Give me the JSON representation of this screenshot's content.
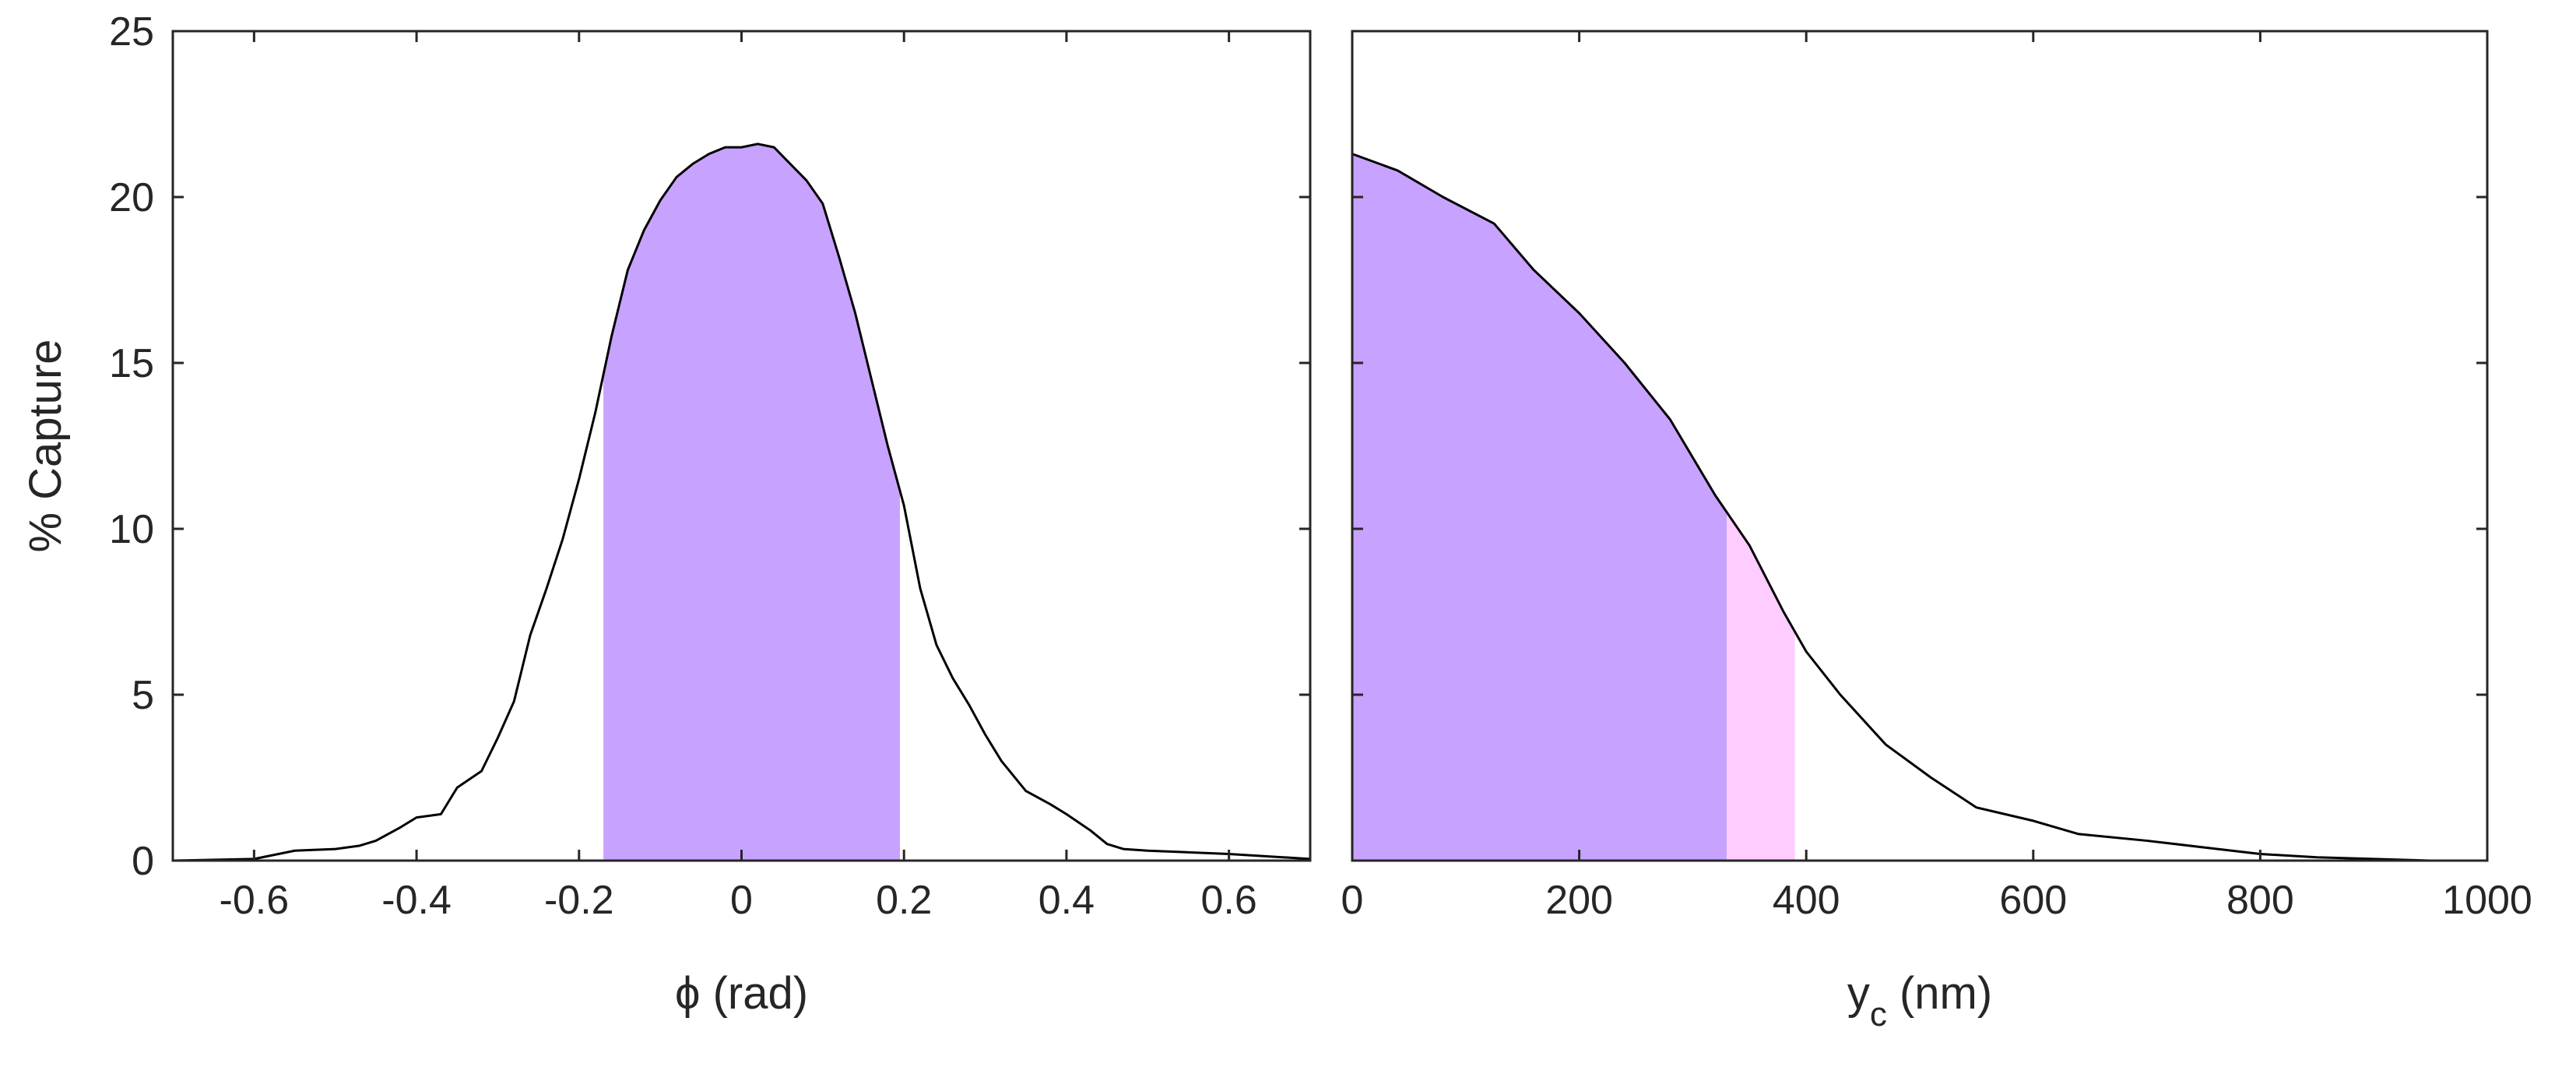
{
  "colors": {
    "primary_fill": "#c8a2ff",
    "secondary_fill": "#ffccff",
    "line": "#000000",
    "axis": "#262626"
  },
  "chart_data": [
    {
      "type": "area",
      "xlabel": "ϕ (rad)",
      "ylabel": "% Capture",
      "xlim": [
        -0.7,
        0.7
      ],
      "ylim": [
        0,
        25
      ],
      "xticks": [
        -0.6,
        -0.4,
        -0.2,
        0,
        0.2,
        0.4,
        0.6
      ],
      "xtick_labels": [
        "-0.6",
        "-0.4",
        "-0.2",
        "0",
        "0.2",
        "0.4",
        "0.6"
      ],
      "yticks": [
        0,
        5,
        10,
        15,
        20,
        25
      ],
      "ytick_labels": [
        "0",
        "5",
        "10",
        "15",
        "20",
        "25"
      ],
      "grid": false,
      "series": [
        {
          "x": [
            -0.7,
            -0.6,
            -0.55,
            -0.5,
            -0.47,
            -0.45,
            -0.42,
            -0.4,
            -0.37,
            -0.35,
            -0.32,
            -0.3,
            -0.28,
            -0.26,
            -0.24,
            -0.22,
            -0.2,
            -0.18,
            -0.16,
            -0.14,
            -0.12,
            -0.1,
            -0.08,
            -0.06,
            -0.04,
            -0.02,
            0,
            0.02,
            0.04,
            0.06,
            0.08,
            0.1,
            0.12,
            0.14,
            0.16,
            0.18,
            0.2,
            0.22,
            0.24,
            0.26,
            0.28,
            0.3,
            0.32,
            0.35,
            0.38,
            0.4,
            0.43,
            0.45,
            0.47,
            0.5,
            0.6,
            0.7
          ],
          "y": [
            0,
            0.05,
            0.3,
            0.35,
            0.45,
            0.6,
            1.0,
            1.3,
            1.4,
            2.2,
            2.7,
            3.7,
            4.8,
            6.8,
            8.2,
            9.7,
            11.5,
            13.5,
            15.8,
            17.8,
            19.0,
            19.9,
            20.6,
            21.0,
            21.3,
            21.5,
            21.5,
            21.6,
            21.5,
            21.0,
            20.5,
            19.8,
            18.2,
            16.5,
            14.5,
            12.5,
            10.7,
            8.2,
            6.5,
            5.5,
            4.7,
            3.8,
            3.0,
            2.1,
            1.7,
            1.4,
            0.9,
            0.5,
            0.35,
            0.3,
            0.2,
            0.05
          ]
        }
      ],
      "shaded_regions": [
        {
          "x_range": [
            -0.17,
            0.195
          ],
          "color": "#c8a2ff"
        }
      ]
    },
    {
      "type": "area",
      "xlabel": "y",
      "xlabel_subscript": "c",
      "xlabel_unit": " (nm)",
      "ylabel": "",
      "xlim": [
        0,
        1000
      ],
      "ylim": [
        0,
        25
      ],
      "xticks": [
        0,
        200,
        400,
        600,
        800,
        1000
      ],
      "xtick_labels": [
        "0",
        "200",
        "400",
        "600",
        "800",
        "1000"
      ],
      "yticks": [
        0,
        5,
        10,
        15,
        20,
        25
      ],
      "grid": false,
      "series": [
        {
          "x": [
            0,
            40,
            80,
            125,
            160,
            200,
            240,
            280,
            320,
            350,
            380,
            400,
            430,
            470,
            510,
            550,
            600,
            640,
            700,
            750,
            800,
            850,
            900,
            950
          ],
          "y": [
            21.3,
            20.8,
            20.0,
            19.2,
            17.8,
            16.5,
            15.0,
            13.3,
            11.0,
            9.5,
            7.5,
            6.3,
            5.0,
            3.5,
            2.5,
            1.6,
            1.2,
            0.8,
            0.6,
            0.4,
            0.2,
            0.1,
            0.05,
            0.0
          ]
        }
      ],
      "shaded_regions": [
        {
          "x_range": [
            0,
            330
          ],
          "color": "#c8a2ff"
        },
        {
          "x_range": [
            330,
            390
          ],
          "color": "#ffccff"
        }
      ]
    }
  ]
}
